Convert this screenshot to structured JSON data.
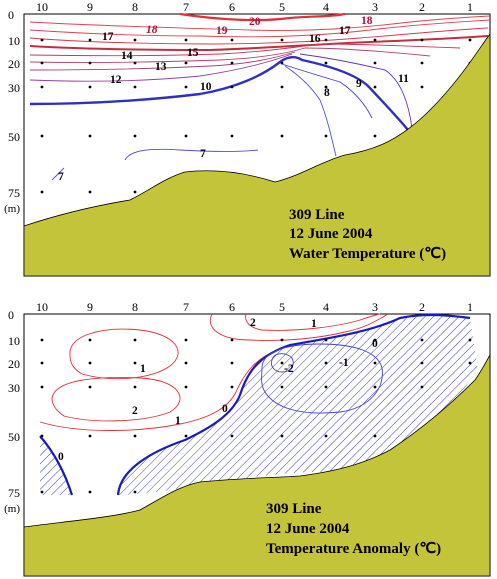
{
  "chart_data": [
    {
      "type": "contour",
      "title_lines": [
        "309 Line",
        "12 June 2004",
        "Water Temperature (℃)"
      ],
      "x_ticks": [
        "10",
        "9",
        "8",
        "7",
        "6",
        "5",
        "4",
        "3",
        "2",
        "1"
      ],
      "y_ticks": [
        "0",
        "10",
        "20",
        "30",
        "50",
        "75"
      ],
      "y_unit": "(m)",
      "ylim": [
        0,
        75
      ],
      "contour_levels": [
        7,
        8,
        9,
        10,
        11,
        12,
        13,
        14,
        15,
        16,
        17,
        18,
        19,
        20
      ],
      "contour_labels": [
        "20",
        "19",
        "18",
        "18",
        "17",
        "17",
        "16",
        "15",
        "14",
        "13",
        "12",
        "11",
        "10",
        "9",
        "8",
        "7",
        "7"
      ],
      "colors": {
        "warm": "#e0303a",
        "cool": "#3030d0",
        "thick_warm": "#b0103a",
        "thick_cool": "#2828b8",
        "seabed": "#c4c43a"
      }
    },
    {
      "type": "contour",
      "title_lines": [
        "309 Line",
        "12 June 2004",
        "Temperature Anomaly (℃)"
      ],
      "x_ticks": [
        "10",
        "9",
        "8",
        "7",
        "6",
        "5",
        "4",
        "3",
        "2",
        "1"
      ],
      "y_ticks": [
        "0",
        "10",
        "20",
        "30",
        "50",
        "75"
      ],
      "y_unit": "(m)",
      "ylim": [
        0,
        75
      ],
      "contour_levels": [
        -2,
        -1,
        0,
        1,
        2
      ],
      "contour_labels": [
        "2",
        "1",
        "1",
        "2",
        "1",
        "0",
        "0",
        "0",
        "-1",
        "-2"
      ],
      "negative_region_hatched": true,
      "colors": {
        "positive": "#e0303a",
        "negative": "#4040c8",
        "zero": "#1a1ac0",
        "seabed": "#c4c43a"
      }
    }
  ]
}
